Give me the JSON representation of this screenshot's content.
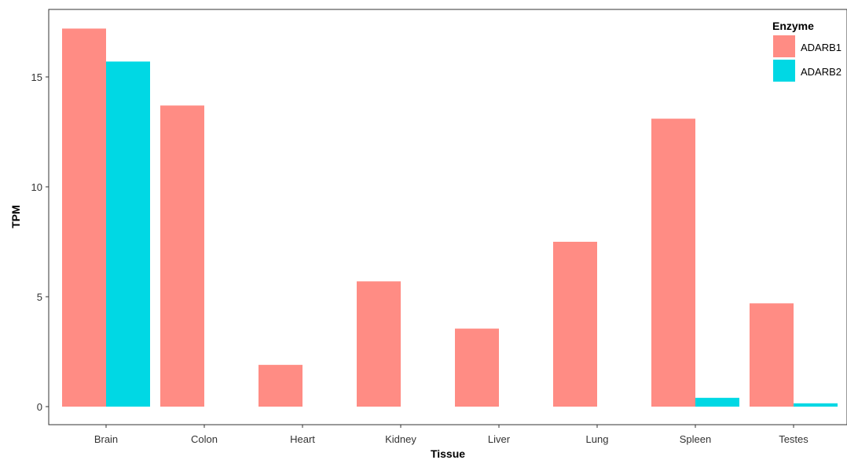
{
  "chart_data": {
    "type": "bar",
    "xlabel": "Tissue",
    "ylabel": "TPM",
    "ylim": [
      -0.8,
      18
    ],
    "yticks": [
      0,
      5,
      10,
      15
    ],
    "grid": false,
    "legend": {
      "title": "Enzyme",
      "placement": "top-right"
    },
    "categories": [
      "Brain",
      "Colon",
      "Heart",
      "Kidney",
      "Liver",
      "Lung",
      "Spleen",
      "Testes"
    ],
    "series": [
      {
        "name": "ADARB1",
        "color": "#ff8c84",
        "values": [
          17.2,
          13.7,
          1.9,
          5.7,
          3.55,
          7.5,
          13.1,
          4.7
        ]
      },
      {
        "name": "ADARB2",
        "color": "#00d8e4",
        "values": [
          15.7,
          0,
          0,
          0,
          0,
          0,
          0.4,
          0.15
        ]
      }
    ]
  }
}
